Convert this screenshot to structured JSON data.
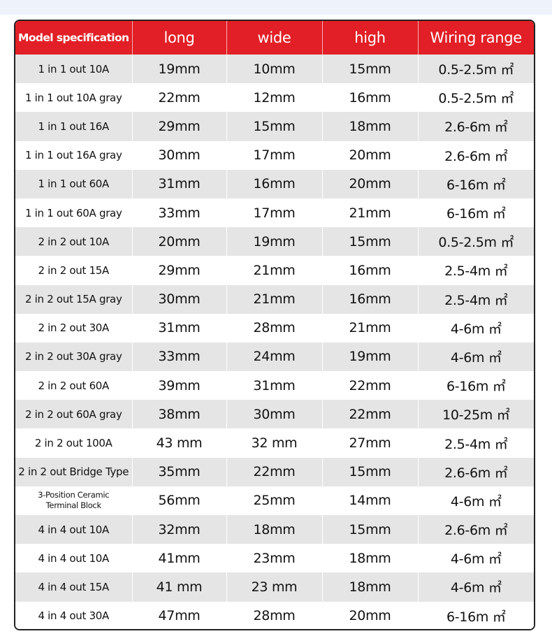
{
  "table": {
    "headers": [
      "Model specification",
      "long",
      "wide",
      "high",
      "Wiring range"
    ],
    "rows": [
      [
        "1 in 1 out 10A",
        "19mm",
        "10mm",
        "15mm",
        "0.5-2.5m ㎡"
      ],
      [
        "1 in 1 out 10A gray",
        "22mm",
        "12mm",
        "16mm",
        "0.5-2.5m ㎡"
      ],
      [
        "1 in 1 out 16A",
        "29mm",
        "15mm",
        "18mm",
        "2.6-6m ㎡"
      ],
      [
        "1 in 1 out 16A gray",
        "30mm",
        "17mm",
        "20mm",
        "2.6-6m ㎡"
      ],
      [
        "1 in 1 out 60A",
        "31mm",
        "16mm",
        "20mm",
        "6-16m ㎡"
      ],
      [
        "1 in 1 out 60A gray",
        "33mm",
        "17mm",
        "21mm",
        "6-16m ㎡"
      ],
      [
        "2 in 2 out 10A",
        "20mm",
        "19mm",
        "15mm",
        "0.5-2.5m ㎡"
      ],
      [
        "2 in 2 out 15A",
        "29mm",
        "21mm",
        "16mm",
        "2.5-4m ㎡"
      ],
      [
        "2 in 2 out 15A gray",
        "30mm",
        "21mm",
        "16mm",
        "2.5-4m ㎡"
      ],
      [
        "2 in 2 out 30A",
        "31mm",
        "28mm",
        "21mm",
        "4-6m ㎡"
      ],
      [
        "2 in 2 out 30A gray",
        "33mm",
        "24mm",
        "19mm",
        "4-6m ㎡"
      ],
      [
        "2 in 2 out 60A",
        "39mm",
        "31mm",
        "22mm",
        "6-16m ㎡"
      ],
      [
        "2 in 2 out 60A gray",
        "38mm",
        "30mm",
        "22mm",
        "10-25m ㎡"
      ],
      [
        "2 in 2 out 100A",
        "43 mm",
        "32 mm",
        "27mm",
        "2.5-4m ㎡"
      ],
      [
        "2 in 2 out Bridge Type",
        "35mm",
        "22mm",
        "15mm",
        "2.6-6m ㎡"
      ],
      [
        "3-Position Ceramic Terminal Block",
        "56mm",
        "25mm",
        "14mm",
        "4-6m ㎡"
      ],
      [
        "4 in 4 out 10A",
        "32mm",
        "18mm",
        "15mm",
        "2.6-6m ㎡"
      ],
      [
        "4 in 4 out 10A",
        "41mm",
        "23mm",
        "18mm",
        "4-6m ㎡"
      ],
      [
        "4 in 4 out 15A",
        "41 mm",
        "23 mm",
        "18mm",
        "4-6m ㎡"
      ],
      [
        "4 in 4 out 30A",
        "47mm",
        "28mm",
        "20mm",
        "6-16m ㎡"
      ]
    ]
  },
  "colors": {
    "header": "#e21f26",
    "row_alt": "#e5e5e5",
    "band": "#eef2fa"
  }
}
